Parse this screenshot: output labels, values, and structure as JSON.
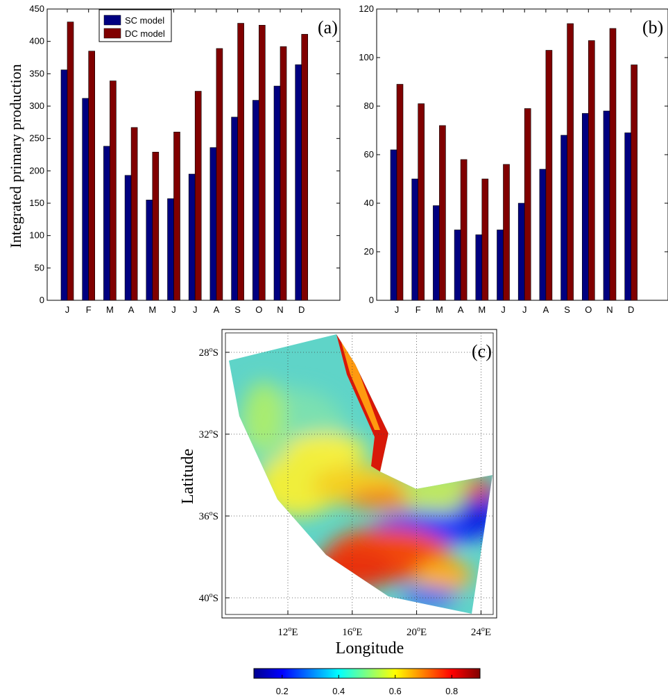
{
  "chart_data": [
    {
      "panel": "(a)",
      "type": "bar",
      "categories": [
        "J",
        "F",
        "M",
        "A",
        "M",
        "J",
        "J",
        "A",
        "S",
        "O",
        "N",
        "D"
      ],
      "series": [
        {
          "name": "SC model",
          "color": "#000080",
          "values": [
            356,
            312,
            238,
            193,
            155,
            157,
            195,
            236,
            283,
            309,
            331,
            364
          ]
        },
        {
          "name": "DC model",
          "color": "#800000",
          "values": [
            430,
            385,
            339,
            267,
            229,
            260,
            323,
            389,
            428,
            425,
            392,
            411
          ]
        }
      ],
      "ylabel": "Integrated primary production",
      "ylim": [
        0,
        450
      ],
      "yticks": [
        0,
        50,
        100,
        150,
        200,
        250,
        300,
        350,
        400,
        450
      ],
      "legend": "top-left"
    },
    {
      "panel": "(b)",
      "type": "bar",
      "categories": [
        "J",
        "F",
        "M",
        "A",
        "M",
        "J",
        "J",
        "A",
        "S",
        "O",
        "N",
        "D"
      ],
      "series": [
        {
          "color": "#000080",
          "values": [
            62,
            50,
            39,
            29,
            27,
            29,
            40,
            54,
            68,
            77,
            78,
            69
          ]
        },
        {
          "color": "#800000",
          "values": [
            89,
            81,
            72,
            58,
            50,
            56,
            79,
            103,
            114,
            107,
            112,
            97
          ]
        }
      ],
      "ylim": [
        0,
        120
      ],
      "yticks": [
        0,
        20,
        40,
        60,
        80,
        100,
        120
      ]
    },
    {
      "panel": "(c)",
      "type": "heatmap",
      "xlabel": "Longitude",
      "ylabel": "Latitude",
      "xticks": [
        "12",
        "16",
        "20",
        "24"
      ],
      "xtick_suffix": "E",
      "yticks": [
        "28",
        "32",
        "36",
        "40"
      ],
      "ytick_suffix": "S",
      "colorbar_ticks": [
        "0.2",
        "0.4",
        "0.6",
        "0.8"
      ],
      "colorbar_range": [
        0.1,
        0.9
      ],
      "colormap": "jet"
    }
  ]
}
